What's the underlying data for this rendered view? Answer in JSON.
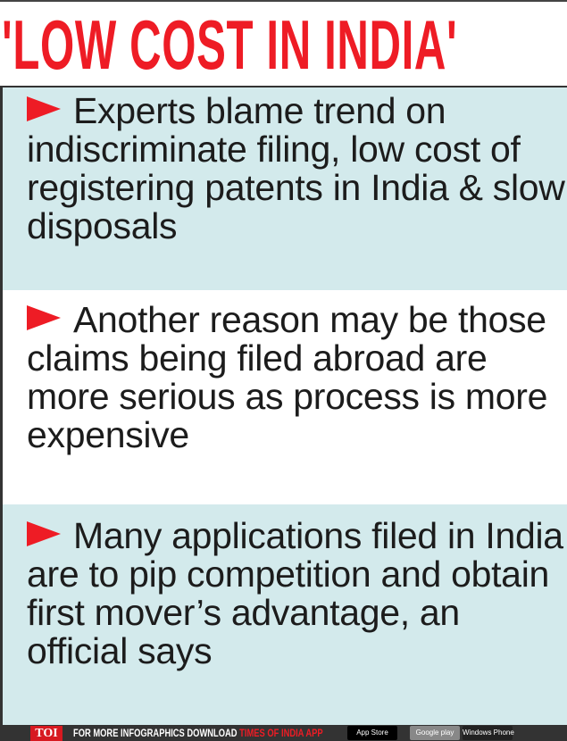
{
  "title": "'LOW COST IN INDIA'",
  "points": [
    {
      "icon": "arrow-right-icon",
      "text": "Experts blame trend on indiscriminate filing, low cost of registering patents in India & slow disposals"
    },
    {
      "icon": "arrow-right-icon",
      "text": "Another reason may be those claims being filed abroad are more serious as process is more expensive"
    },
    {
      "icon": "arrow-right-icon",
      "text": "Many applications filed in India are to pip competition and obtain first mover’s advantage, an official says"
    }
  ],
  "footer": {
    "logo": "TOI",
    "text": "FOR MORE  INFOGRAPHICS DOWNLOAD ",
    "app": "TIMES OF INDIA  APP",
    "badges": [
      "App Store",
      "Google play",
      "Windows Phone"
    ]
  },
  "colors": {
    "accent": "#ee1c25",
    "panel": "#d3eaec",
    "footer": "#333333"
  }
}
